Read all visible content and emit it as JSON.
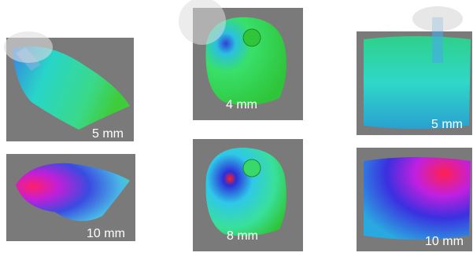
{
  "panels": [
    {
      "label": "5 mm"
    },
    {
      "label": "10 mm"
    },
    {
      "label": "4 mm"
    },
    {
      "label": "8 mm"
    },
    {
      "label": "5 mm"
    },
    {
      "label": "10 mm"
    }
  ]
}
